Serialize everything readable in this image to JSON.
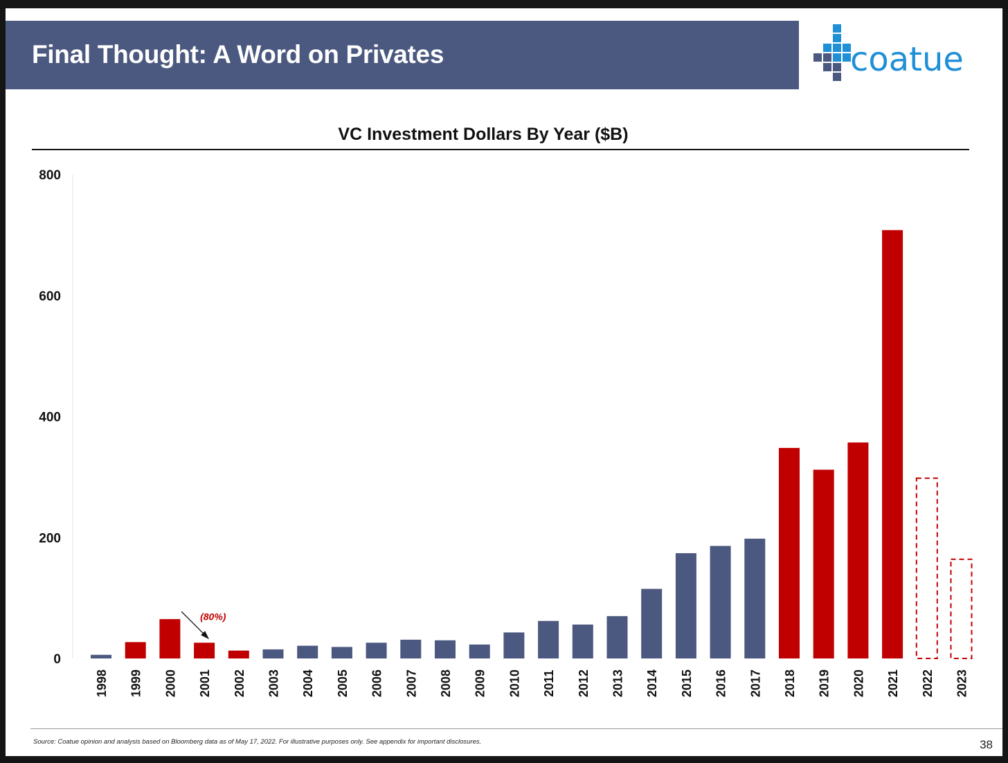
{
  "slide": {
    "title": "Final Thought: A Word on Privates",
    "logo_text": "coatue",
    "source_note": "Source: Coatue opinion and analysis based on Bloomberg data as of May 17, 2022. For illustrative purposes only. See appendix for important disclosures.",
    "page_number": "38",
    "colors": {
      "header_band": "#4b587f",
      "logo_blue": "#1f8fd6",
      "logo_navy": "#4b587f"
    }
  },
  "chart_data": {
    "type": "bar",
    "title": "VC Investment Dollars By Year ($B)",
    "xlabel": "",
    "ylabel": "",
    "ylim": [
      0,
      800
    ],
    "yticks": [
      0,
      200,
      400,
      600,
      800
    ],
    "grid": false,
    "categories": [
      "1998",
      "1999",
      "2000",
      "2001",
      "2002",
      "2003",
      "2004",
      "2005",
      "2006",
      "2007",
      "2008",
      "2009",
      "2010",
      "2011",
      "2012",
      "2013",
      "2014",
      "2015",
      "2016",
      "2017",
      "2018",
      "2019",
      "2020",
      "2021",
      "2022",
      "2023"
    ],
    "values": [
      6,
      27,
      65,
      26,
      13,
      15,
      21,
      19,
      26,
      31,
      30,
      23,
      43,
      62,
      56,
      70,
      115,
      174,
      186,
      198,
      348,
      312,
      357,
      708,
      298,
      164
    ],
    "bar_styles": [
      "navy",
      "red",
      "red",
      "red",
      "red",
      "navy",
      "navy",
      "navy",
      "navy",
      "navy",
      "navy",
      "navy",
      "navy",
      "navy",
      "navy",
      "navy",
      "navy",
      "navy",
      "navy",
      "navy",
      "red",
      "red",
      "red",
      "red",
      "dashed-red",
      "dashed-red"
    ],
    "colors": {
      "navy": "#4b587f",
      "red": "#c00000",
      "annotation": "#c00000"
    },
    "annotations": [
      {
        "text": "(80%)",
        "category": "2001"
      }
    ]
  }
}
